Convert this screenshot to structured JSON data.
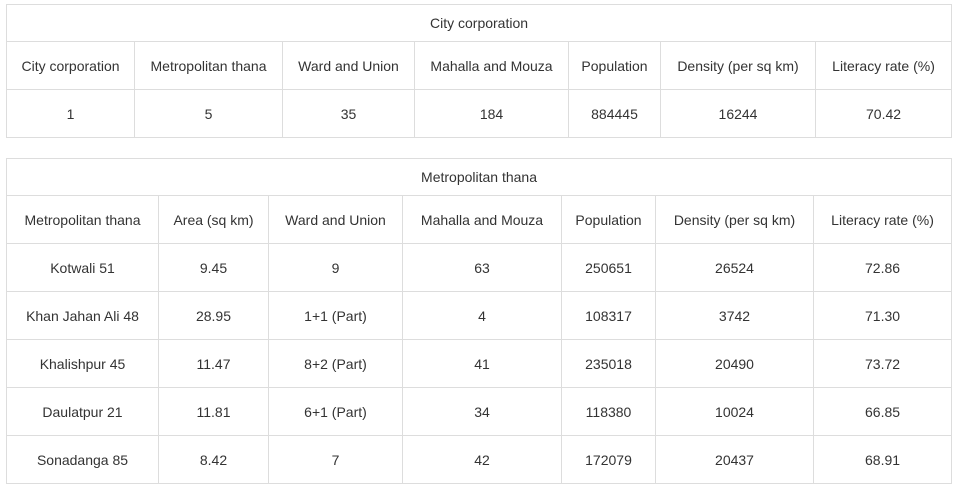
{
  "city_table": {
    "caption": "City corporation",
    "headers": [
      "City corporation",
      "Metropolitan thana",
      "Ward and Union",
      "Mahalla and Mouza",
      "Population",
      "Density (per sq km)",
      "Literacy rate (%)"
    ],
    "rows": [
      [
        "1",
        "5",
        "35",
        "184",
        "884445",
        "16244",
        "70.42"
      ]
    ]
  },
  "thana_table": {
    "caption": "Metropolitan thana",
    "headers": [
      "Metropolitan thana",
      "Area (sq km)",
      "Ward and Union",
      "Mahalla and Mouza",
      "Population",
      "Density (per sq km)",
      "Literacy rate (%)"
    ],
    "rows": [
      [
        "Kotwali 51",
        "9.45",
        "9",
        "63",
        "250651",
        "26524",
        "72.86"
      ],
      [
        "Khan Jahan Ali 48",
        "28.95",
        "1+1 (Part)",
        "4",
        "108317",
        "3742",
        "71.30"
      ],
      [
        "Khalishpur 45",
        "11.47",
        "8+2 (Part)",
        "41",
        "235018",
        "20490",
        "73.72"
      ],
      [
        "Daulatpur 21",
        "11.81",
        "6+1 (Part)",
        "34",
        "118380",
        "10024",
        "66.85"
      ],
      [
        "Sonadanga 85",
        "8.42",
        "7",
        "42",
        "172079",
        "20437",
        "68.91"
      ]
    ]
  }
}
